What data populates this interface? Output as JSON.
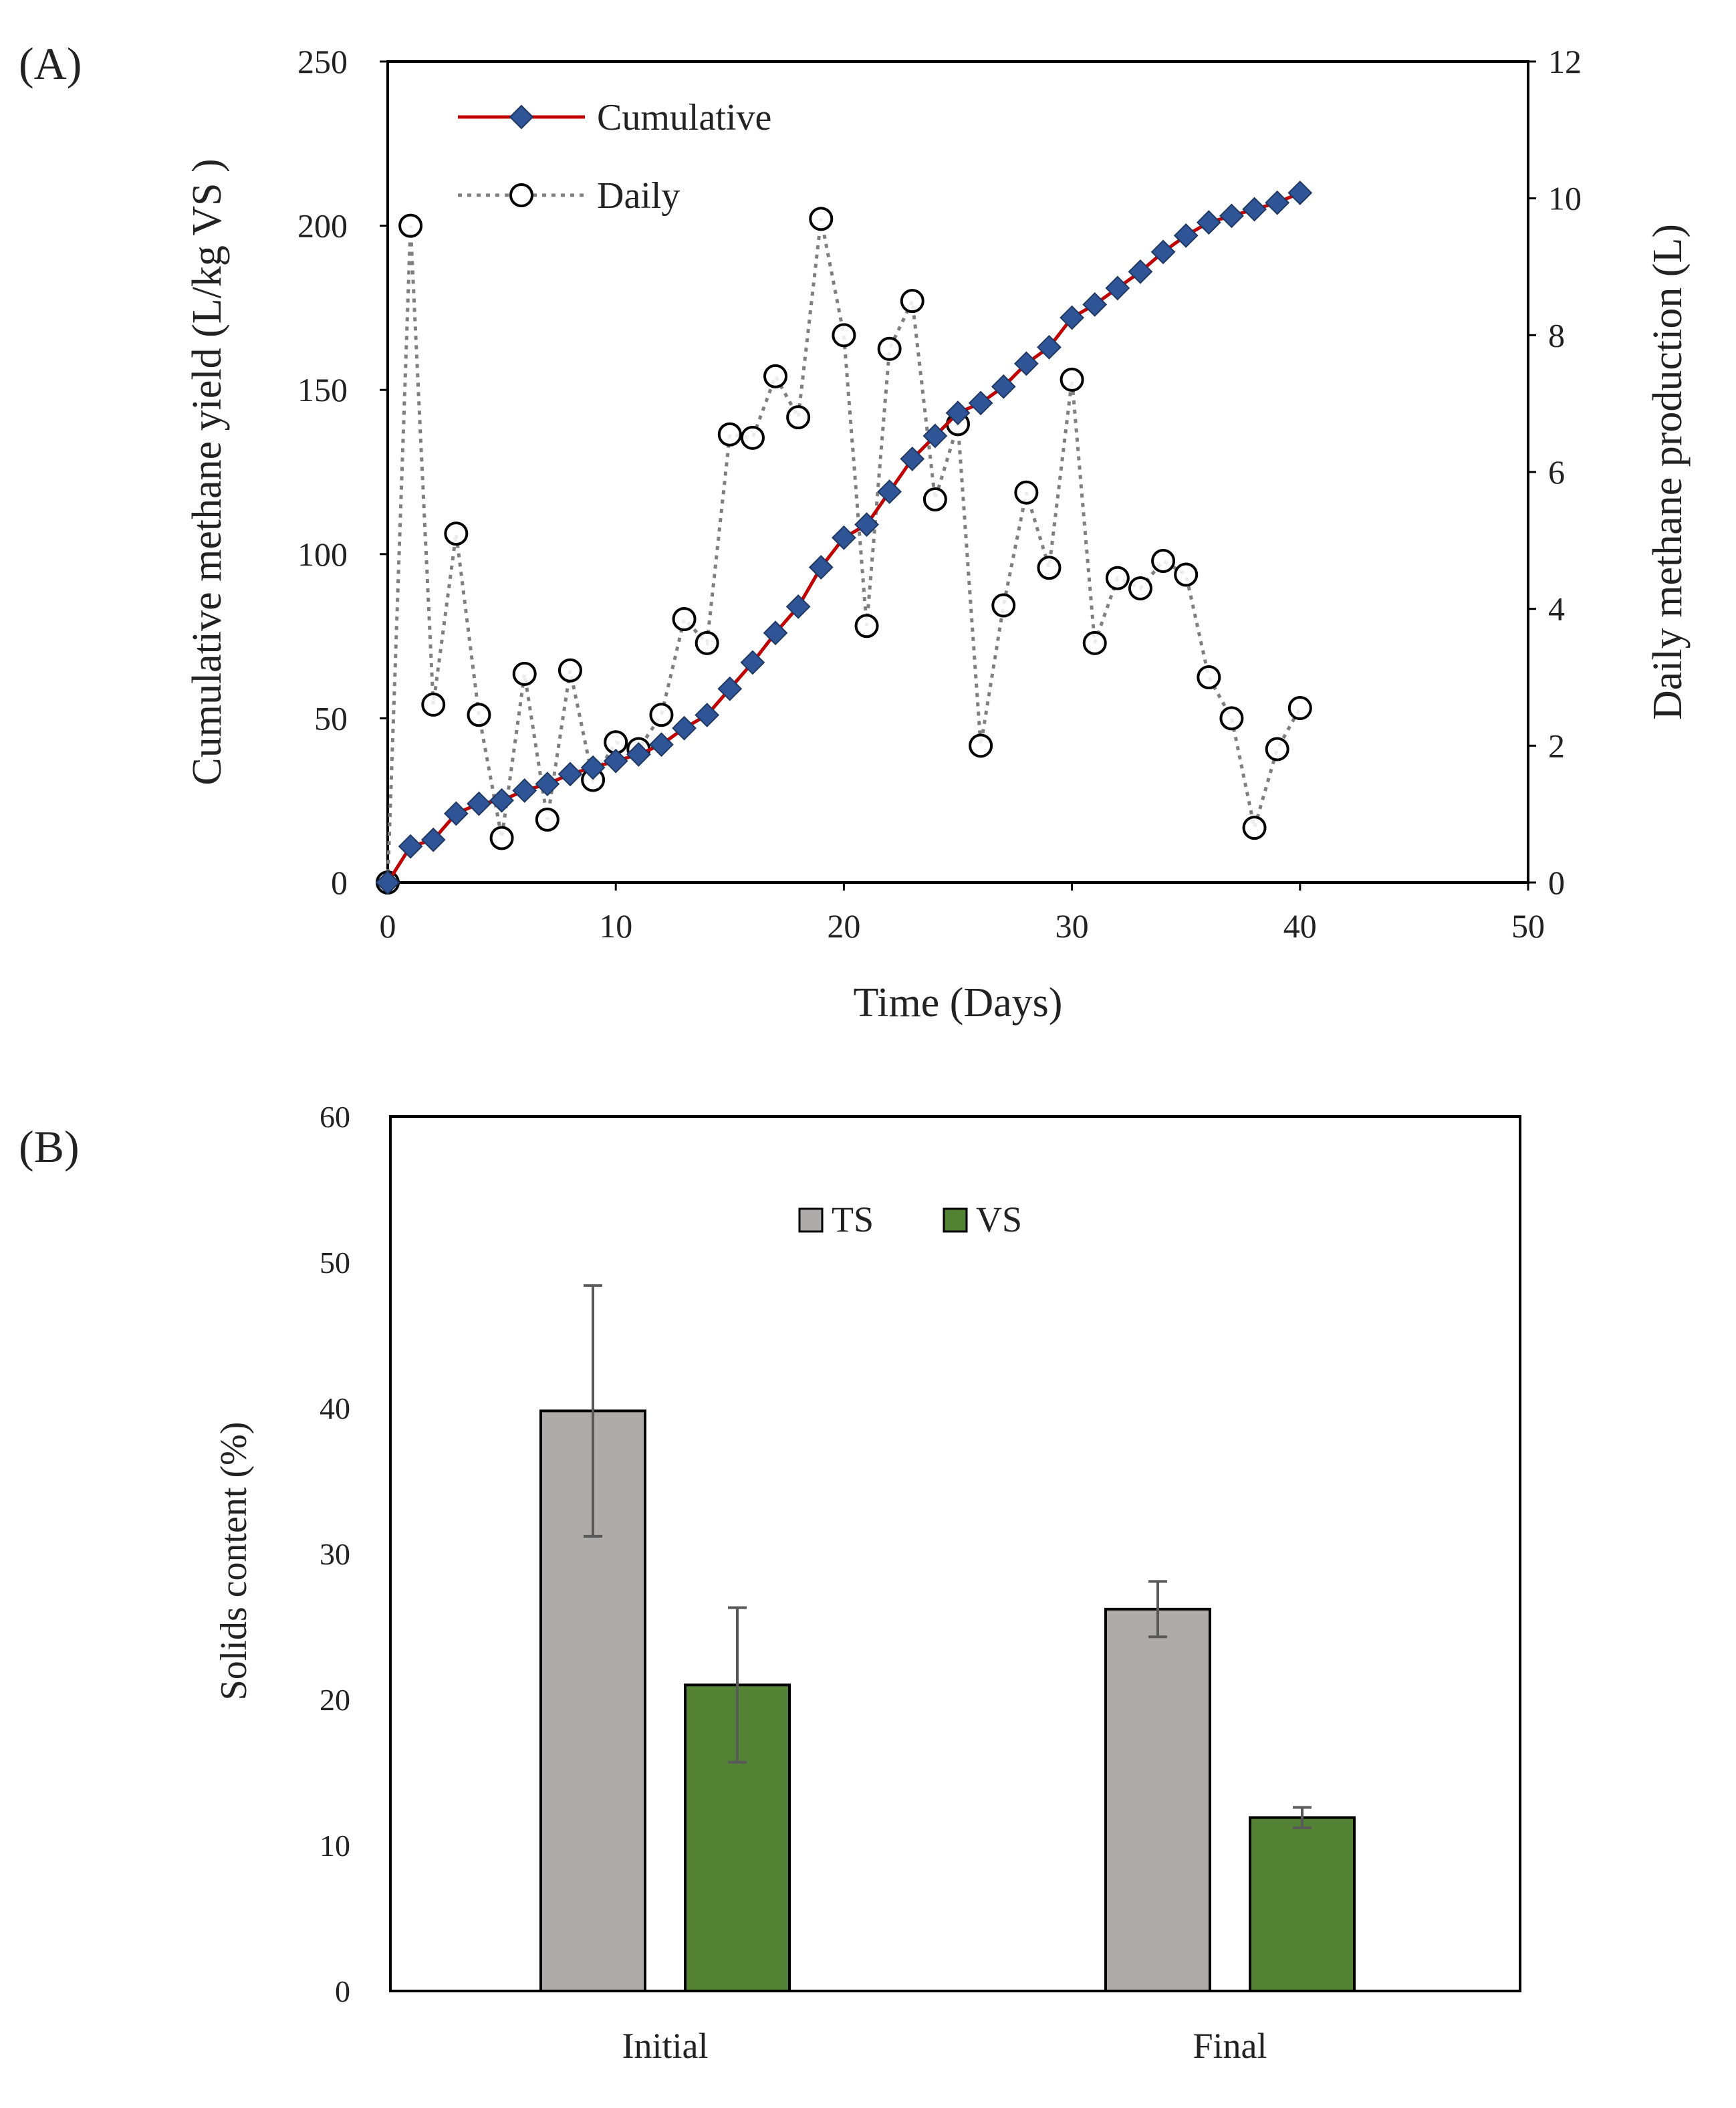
{
  "panels": {
    "a_label": "(A)",
    "b_label": "(B)"
  },
  "chart_data": [
    {
      "type": "line",
      "panel": "(A)",
      "xlabel": "Time (Days)",
      "ylabel": "Cumulative methane yield (L/kg VS )",
      "y2label": "Daily methane production (L)",
      "xlim": [
        0,
        50
      ],
      "ylim": [
        0,
        250
      ],
      "y2lim": [
        0,
        12
      ],
      "x_ticks": [
        "0",
        "10",
        "20",
        "30",
        "40",
        "50"
      ],
      "y_ticks": [
        "0",
        "50",
        "100",
        "150",
        "200",
        "250"
      ],
      "y2_ticks": [
        "0",
        "2",
        "4",
        "6",
        "8",
        "10",
        "12"
      ],
      "legend_position": "top-left",
      "colors": {
        "cumulative_line": "#c00000",
        "cumulative_marker": "#2f5597",
        "daily": "#7f7f7f"
      },
      "series": [
        {
          "name": "Cumulative",
          "axis": "left",
          "x": [
            0,
            1,
            2,
            3,
            4,
            5,
            6,
            7,
            8,
            9,
            10,
            11,
            12,
            13,
            14,
            15,
            16,
            17,
            18,
            19,
            20,
            21,
            22,
            23,
            24,
            25,
            26,
            27,
            28,
            29,
            30,
            31,
            32,
            33,
            34,
            35,
            36,
            37,
            38,
            39,
            40
          ],
          "values": [
            0,
            11,
            13,
            21,
            24,
            25,
            28,
            30,
            33,
            35,
            37,
            39,
            42,
            47,
            51,
            59,
            67,
            76,
            84,
            96,
            105,
            109,
            119,
            129,
            136,
            143,
            146,
            151,
            158,
            163,
            172,
            176,
            181,
            186,
            192,
            197,
            201,
            203,
            205,
            207,
            210
          ]
        },
        {
          "name": "Daily",
          "axis": "right",
          "x": [
            0,
            1,
            2,
            3,
            4,
            5,
            6,
            7,
            8,
            9,
            10,
            11,
            12,
            13,
            14,
            15,
            16,
            17,
            18,
            19,
            20,
            21,
            22,
            23,
            24,
            25,
            26,
            27,
            28,
            29,
            30,
            31,
            32,
            33,
            34,
            35,
            36,
            37,
            38,
            39,
            40
          ],
          "values": [
            0,
            9.6,
            2.6,
            5.1,
            2.45,
            0.65,
            3.05,
            0.92,
            3.1,
            1.5,
            2.05,
            1.95,
            2.45,
            3.85,
            3.5,
            6.55,
            6.5,
            7.4,
            6.8,
            9.7,
            8.0,
            3.75,
            7.8,
            8.5,
            5.6,
            6.7,
            2.0,
            4.05,
            5.7,
            4.6,
            7.35,
            3.5,
            4.45,
            4.3,
            4.7,
            4.5,
            3.0,
            2.4,
            0.8,
            1.95,
            2.55
          ]
        }
      ]
    },
    {
      "type": "bar",
      "panel": "(B)",
      "xlabel": "",
      "ylabel": "Solids content (%)",
      "ylim": [
        0,
        60
      ],
      "y_ticks": [
        "0",
        "10",
        "20",
        "30",
        "40",
        "50",
        "60"
      ],
      "categories": [
        "Initial",
        "Final"
      ],
      "legend_position": "top-center",
      "colors": {
        "TS": "#afabab",
        "VS": "#548235",
        "error_bar": "#595959"
      },
      "series": [
        {
          "name": "TS",
          "values": [
            39.8,
            26.2
          ],
          "errors": [
            8.6,
            1.9
          ]
        },
        {
          "name": "VS",
          "values": [
            21.0,
            11.9
          ],
          "errors": [
            5.3,
            0.7
          ]
        }
      ]
    }
  ]
}
